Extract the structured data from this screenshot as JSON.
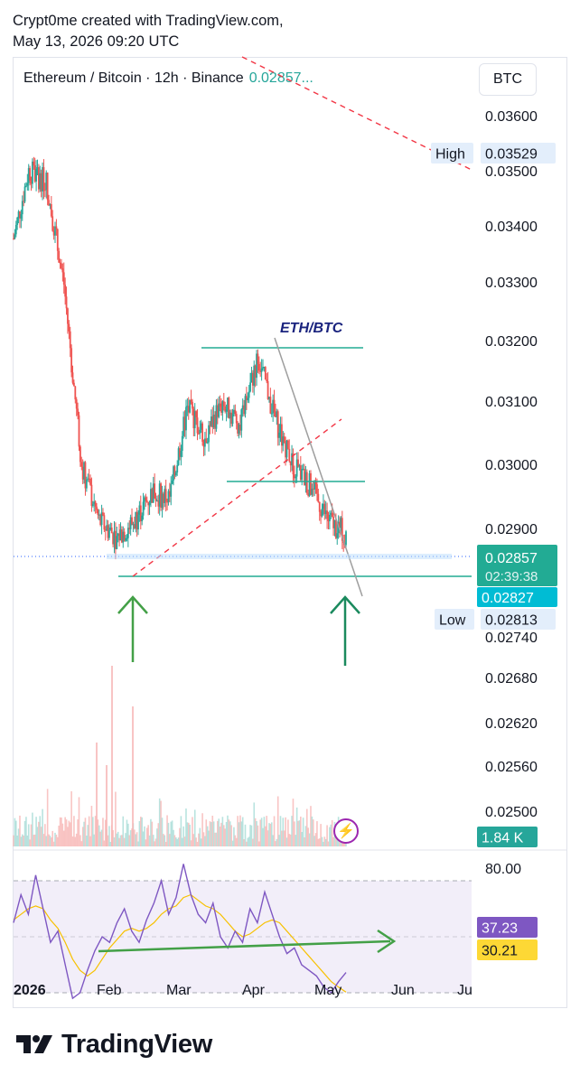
{
  "attribution": {
    "line1": "Crypt0me created with TradingView.com,",
    "line2": "May 13, 2026 09:20 UTC"
  },
  "header": {
    "symbol_line": "Ethereum / Bitcoin · 12h · Binance",
    "price": "0.02857...",
    "currency_button": "BTC"
  },
  "annotation": {
    "label": "ETH/BTC"
  },
  "price_badges": {
    "high_label": "High",
    "high_value": "0.03529",
    "last_price": "0.02857",
    "countdown": "02:39:38",
    "support_value": "0.02827",
    "low_label": "Low",
    "low_value": "0.02813",
    "volume_value": "1.84 K",
    "rsi_value": "37.23",
    "rsi_ma_value": "30.21"
  },
  "brand": {
    "name": "TradingView",
    "logo_icon": "tradingview-logo-icon",
    "alert_icon": "lightning-bolt-icon"
  },
  "colors": {
    "up": "#26a69a",
    "down": "#ef5350",
    "rsi_line": "#7e57c2",
    "rsi_ma": "#f7c100",
    "trend_line": "#22ab94",
    "arrow": "#43a047",
    "dashed_red": "#f23645",
    "wedge": "#9e9e9e"
  },
  "chart_data": [
    {
      "type": "candlestick",
      "symbol": "ETH/BTC",
      "interval": "12h",
      "exchange": "Binance",
      "x_ticks": [
        "2026",
        "Feb",
        "Mar",
        "Apr",
        "May",
        "Jun",
        "Ju"
      ],
      "y_ticks": [
        "0.03600",
        "0.03500",
        "0.03400",
        "0.03300",
        "0.03200",
        "0.03100",
        "0.03000",
        "0.02900",
        "0.02740",
        "0.02680",
        "0.02620",
        "0.02560",
        "0.02500"
      ],
      "ylim": [
        0.0248,
        0.0368
      ],
      "horizontal_levels": [
        0.03186,
        0.02975,
        0.02827
      ],
      "trendlines": [
        "ascending dashed support from Feb low",
        "descending wedge resistance from Apr high",
        "red dashed descending line from top"
      ],
      "approx_closes": [
        {
          "date": "2026-01-01",
          "close": 0.0338
        },
        {
          "date": "2026-01-07",
          "close": 0.035
        },
        {
          "date": "2026-01-14",
          "close": 0.0348
        },
        {
          "date": "2026-01-21",
          "close": 0.033
        },
        {
          "date": "2026-01-28",
          "close": 0.0298
        },
        {
          "date": "2026-02-04",
          "close": 0.0288
        },
        {
          "date": "2026-02-11",
          "close": 0.0285
        },
        {
          "date": "2026-02-18",
          "close": 0.0288
        },
        {
          "date": "2026-02-25",
          "close": 0.0293
        },
        {
          "date": "2026-03-04",
          "close": 0.0292
        },
        {
          "date": "2026-03-11",
          "close": 0.0308
        },
        {
          "date": "2026-03-18",
          "close": 0.0303
        },
        {
          "date": "2026-03-25",
          "close": 0.0309
        },
        {
          "date": "2026-04-01",
          "close": 0.0305
        },
        {
          "date": "2026-04-08",
          "close": 0.0317
        },
        {
          "date": "2026-04-15",
          "close": 0.0306
        },
        {
          "date": "2026-04-22",
          "close": 0.0298
        },
        {
          "date": "2026-04-29",
          "close": 0.0294
        },
        {
          "date": "2026-05-06",
          "close": 0.0288
        },
        {
          "date": "2026-05-13",
          "close": 0.02857
        }
      ]
    },
    {
      "type": "line",
      "name": "RSI",
      "y_ticks": [
        "80.00"
      ],
      "ylim": [
        20,
        90
      ],
      "bands": [
        70,
        50,
        30
      ],
      "series": [
        {
          "values": [
            55,
            65,
            58,
            72,
            60,
            48,
            52,
            40,
            28,
            30,
            38,
            45,
            50,
            48,
            55,
            60,
            52,
            48,
            56,
            62,
            70,
            58,
            64,
            76,
            65,
            58,
            55,
            62,
            50,
            46,
            52,
            48,
            60,
            55,
            66,
            58,
            50,
            44,
            46,
            40,
            38,
            36,
            32,
            30,
            34,
            37.23
          ]
        },
        {
          "values": [
            56,
            58,
            60,
            61,
            60,
            56,
            53,
            48,
            42,
            38,
            36,
            38,
            42,
            46,
            49,
            52,
            53,
            52,
            53,
            55,
            58,
            60,
            61,
            64,
            65,
            63,
            61,
            60,
            58,
            55,
            52,
            50,
            51,
            53,
            55,
            56,
            55,
            52,
            49,
            46,
            43,
            40,
            37,
            34,
            32,
            30.21
          ]
        }
      ],
      "current": 37.23,
      "ma_current": 30.21
    }
  ]
}
